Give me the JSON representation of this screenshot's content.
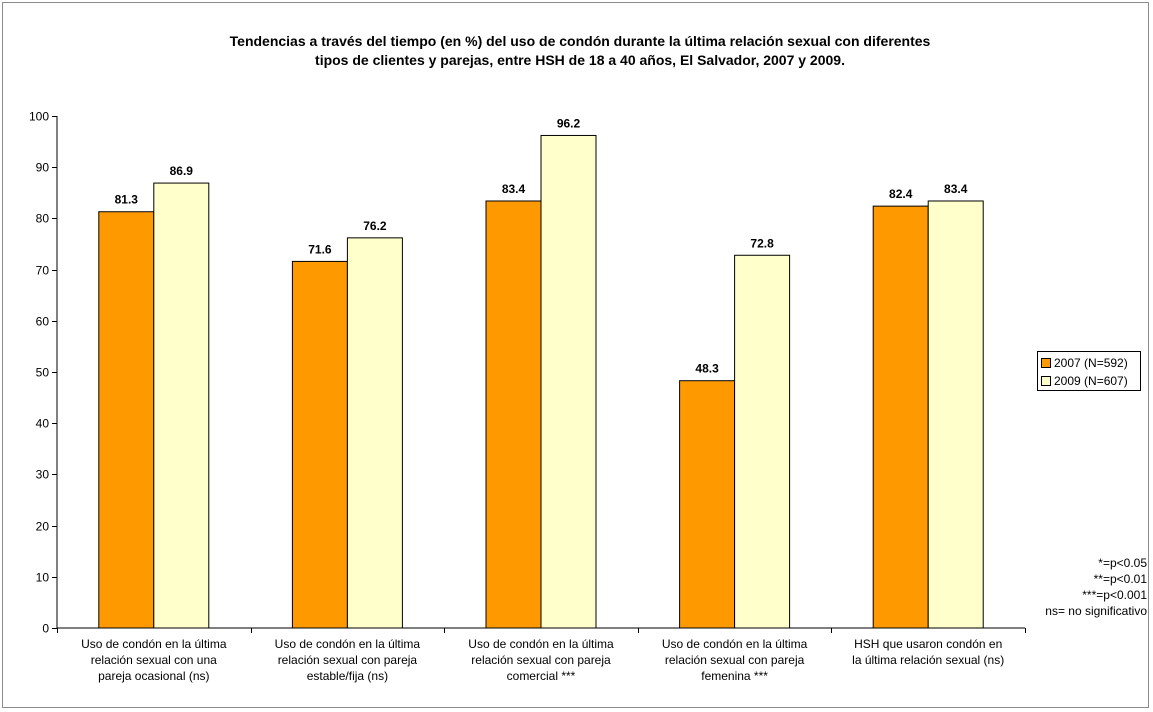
{
  "chart_data": {
    "type": "bar",
    "title_lines": [
      "Tendencias a través del tiempo (en %) del uso de condón durante la última relación sexual con diferentes",
      "tipos de clientes y parejas, entre HSH de 18 a 40 años, El Salvador, 2007 y 2009."
    ],
    "categories": [
      [
        "Uso de condón en la última",
        "relación sexual con una",
        "pareja ocasional (ns)"
      ],
      [
        "Uso de condón en la última",
        "relación sexual con pareja",
        "estable/fija (ns)"
      ],
      [
        "Uso de condón en la última",
        "relación sexual con pareja",
        "comercial ***"
      ],
      [
        "Uso de condón en la última",
        "relación sexual con pareja",
        "femenina ***"
      ],
      [
        "HSH que usaron condón en",
        "la última relación sexual (ns)"
      ]
    ],
    "series": [
      {
        "name": "2007 (N=592)",
        "color": "#ff9900",
        "values": [
          81.3,
          71.6,
          83.4,
          48.3,
          82.4
        ]
      },
      {
        "name": "2009 (N=607)",
        "color": "#ffffcc",
        "values": [
          86.9,
          76.2,
          96.2,
          72.8,
          83.4
        ]
      }
    ],
    "ylim": [
      0,
      100
    ],
    "yticks": [
      0,
      10,
      20,
      30,
      40,
      50,
      60,
      70,
      80,
      90,
      100
    ],
    "grid": false,
    "legend_position": "right",
    "notes": [
      "*=p<0.05",
      "**=p<0.01",
      "***=p<0.001",
      "ns= no significativo"
    ]
  }
}
